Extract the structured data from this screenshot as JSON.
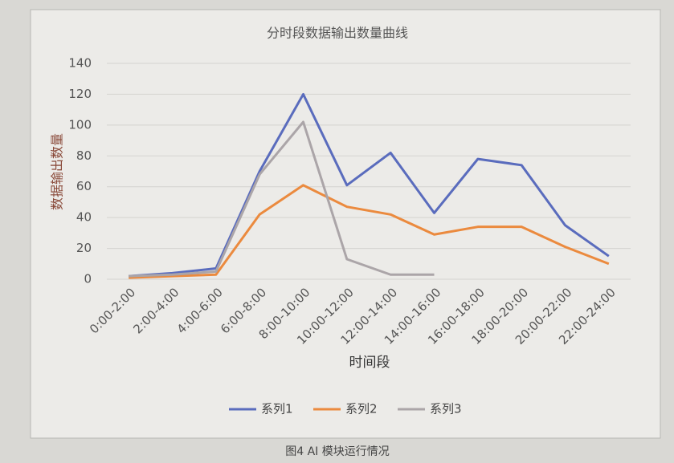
{
  "chart_data": {
    "type": "line",
    "title": "分时段数据输出数量曲线",
    "x_label": "时间段",
    "y_label": "数据输出数量",
    "categories": [
      "0:00-2:00",
      "2:00-4:00",
      "4:00-6:00",
      "6:00-8:00",
      "8:00-10:00",
      "10:00-12:00",
      "12:00-14:00",
      "14:00-16:00",
      "16:00-18:00",
      "18:00-20:00",
      "20:00-22:00",
      "22:00-24:00"
    ],
    "series": [
      {
        "name": "系列1",
        "color": "#5a6cbd",
        "values": [
          2,
          4,
          7,
          70,
          120,
          61,
          82,
          43,
          78,
          74,
          35,
          15
        ]
      },
      {
        "name": "系列2",
        "color": "#eb8a3e",
        "values": [
          1,
          2,
          3,
          42,
          61,
          47,
          42,
          29,
          34,
          34,
          21,
          10
        ]
      },
      {
        "name": "系列3",
        "color": "#aba5a8",
        "values": [
          2,
          3,
          5,
          68,
          102,
          13,
          3,
          3,
          null,
          null,
          null,
          null
        ]
      }
    ],
    "ylim": [
      0,
      140
    ],
    "yticks": [
      0,
      20,
      40,
      60,
      80,
      100,
      120,
      140
    ],
    "grid": true,
    "legend": "bottom",
    "caption": "图4 AI 模块运行情况"
  }
}
